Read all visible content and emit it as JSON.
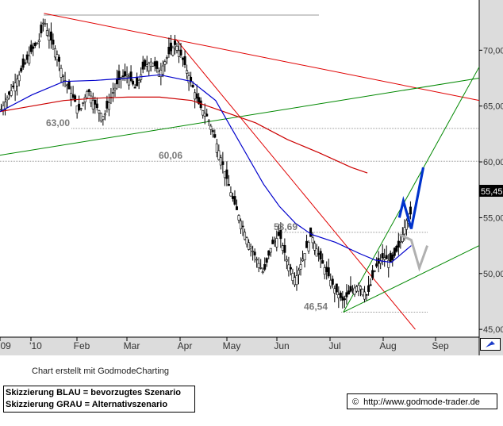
{
  "chart_data": {
    "type": "candlestick",
    "price_label": "55,45",
    "y_ticks": [
      "70,00",
      "65,00",
      "60,00",
      "55,00",
      "50,00",
      "45,00"
    ],
    "x_ticks": [
      "'09",
      "'10",
      "Feb",
      "Mar",
      "Apr",
      "May",
      "Jun",
      "Jul",
      "Aug",
      "Sep"
    ],
    "levels": [
      {
        "label": "63,00",
        "value": 63.0
      },
      {
        "label": "60,06",
        "value": 60.06
      },
      {
        "label": "53,69",
        "value": 53.69
      },
      {
        "label": "46,54",
        "value": 46.54
      }
    ],
    "close_path": [
      [
        0,
        64.5
      ],
      [
        3,
        66.5
      ],
      [
        6,
        68.6
      ],
      [
        8,
        70.0
      ],
      [
        10,
        71.0
      ],
      [
        11,
        72.8
      ],
      [
        12,
        71.5
      ],
      [
        14,
        70.0
      ],
      [
        16,
        67.5
      ],
      [
        18,
        66.0
      ],
      [
        20,
        64.5
      ],
      [
        22,
        66.5
      ],
      [
        24,
        65.0
      ],
      [
        26,
        64.0
      ],
      [
        28,
        66.0
      ],
      [
        30,
        67.5
      ],
      [
        32,
        67.8
      ],
      [
        34,
        66.5
      ],
      [
        36,
        68.5
      ],
      [
        38,
        69.0
      ],
      [
        40,
        68.0
      ],
      [
        42,
        69.5
      ],
      [
        44,
        70.6
      ],
      [
        46,
        69.0
      ],
      [
        48,
        67.0
      ],
      [
        50,
        65.0
      ],
      [
        52,
        64.0
      ],
      [
        54,
        62.0
      ],
      [
        56,
        59.5
      ],
      [
        58,
        57.0
      ],
      [
        60,
        55.0
      ],
      [
        62,
        53.0
      ],
      [
        64,
        51.5
      ],
      [
        66,
        50.0
      ],
      [
        68,
        52.5
      ],
      [
        70,
        53.5
      ],
      [
        72,
        51.0
      ],
      [
        74,
        49.5
      ],
      [
        76,
        51.5
      ],
      [
        78,
        53.5
      ],
      [
        80,
        51.5
      ],
      [
        82,
        50.0
      ],
      [
        84,
        48.5
      ],
      [
        86,
        47.5
      ],
      [
        88,
        48.5
      ],
      [
        90,
        49.0
      ],
      [
        92,
        48.0
      ],
      [
        94,
        50.5
      ],
      [
        96,
        51.5
      ],
      [
        98,
        51.0
      ],
      [
        100,
        52.5
      ],
      [
        102,
        55.0
      ],
      [
        103,
        55.4
      ]
    ],
    "sma_blue": [
      [
        0,
        64.5
      ],
      [
        8,
        66.0
      ],
      [
        16,
        67.2
      ],
      [
        24,
        67.3
      ],
      [
        32,
        67.5
      ],
      [
        40,
        67.8
      ],
      [
        48,
        67.2
      ],
      [
        54,
        65.5
      ],
      [
        58,
        63.0
      ],
      [
        62,
        60.5
      ],
      [
        66,
        58.0
      ],
      [
        70,
        56.0
      ],
      [
        74,
        54.5
      ],
      [
        78,
        53.5
      ],
      [
        84,
        52.8
      ],
      [
        90,
        51.8
      ],
      [
        94,
        51.2
      ],
      [
        98,
        51.0
      ],
      [
        103,
        52.5
      ]
    ],
    "sma_red": [
      [
        0,
        64.5
      ],
      [
        8,
        65.0
      ],
      [
        16,
        65.5
      ],
      [
        24,
        65.7
      ],
      [
        32,
        65.8
      ],
      [
        40,
        65.8
      ],
      [
        48,
        65.5
      ],
      [
        56,
        64.5
      ],
      [
        64,
        63.5
      ],
      [
        72,
        62.0
      ],
      [
        80,
        60.8
      ],
      [
        88,
        59.5
      ],
      [
        92,
        59.0
      ]
    ],
    "trendlines": [
      {
        "color": "#e00000",
        "from": [
          11,
          73.3
        ],
        "to": [
          120,
          65.5
        ]
      },
      {
        "color": "#e00000",
        "from": [
          44,
          71.0
        ],
        "to": [
          104,
          45.0
        ]
      },
      {
        "color": "#008800",
        "from": [
          0,
          60.6
        ],
        "to": [
          120,
          67.5
        ]
      },
      {
        "color": "#008800",
        "from": [
          86,
          46.54
        ],
        "to": [
          120,
          52.5
        ]
      },
      {
        "color": "#008800",
        "from": [
          86,
          46.54
        ],
        "to": [
          120,
          68.5
        ]
      }
    ],
    "scenario_blue": [
      [
        100,
        55.0
      ],
      [
        101,
        56.5
      ],
      [
        103,
        54.0
      ],
      [
        106,
        59.5
      ]
    ],
    "scenario_gray": [
      [
        100,
        53.5
      ],
      [
        103,
        53.0
      ],
      [
        105,
        50.5
      ],
      [
        107,
        52.5
      ]
    ],
    "x_range": [
      0,
      120
    ],
    "y_range": [
      44.3,
      74.5
    ],
    "grid": "horizontal dotted at key levels"
  },
  "footer": {
    "credit": "Chart erstellt mit GodmodeCharting",
    "legend_blue": "Skizzierung BLAU = bevorzugtes Szenario",
    "legend_gray": "Skizzierung GRAU = Alternativszenario",
    "copyright_symbol": "©",
    "site": "http://www.godmode-trader.de"
  },
  "colors": {
    "axis_bg": "#dcdcdc",
    "price_box": "#000000",
    "candle": "#000000",
    "sma_blue": "#0000cc",
    "sma_red": "#cc0000",
    "scenario_blue": "#0033cc",
    "scenario_gray": "#b0b0b0",
    "corner_icon": "#1c3cc8"
  }
}
